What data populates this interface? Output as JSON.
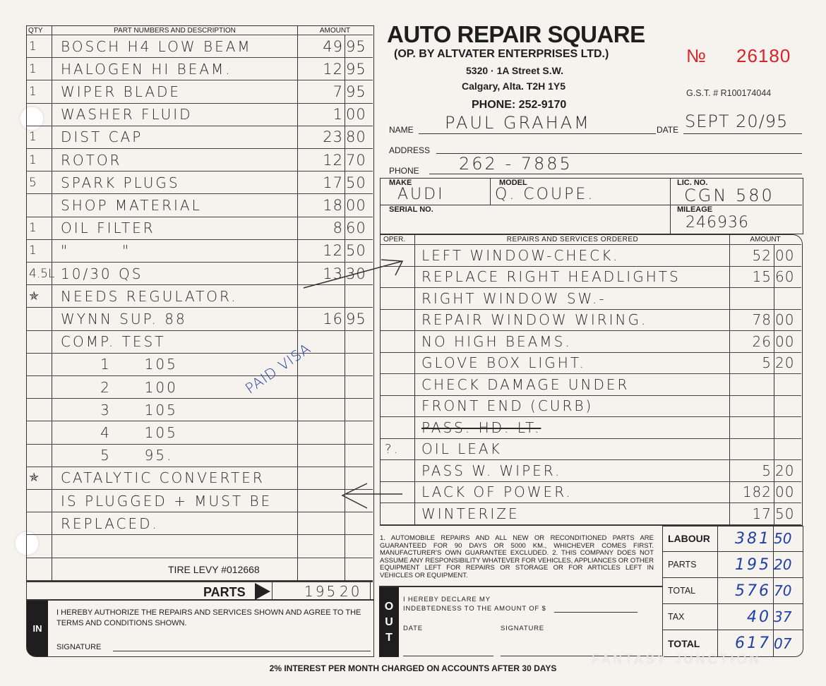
{
  "header": {
    "company": "AUTO REPAIR SQUARE",
    "operator": "(OP. BY ALTVATER ENTERPRISES LTD.)",
    "address1": "5320 · 1A Street S.W.",
    "address2": "Calgary, Alta. T2H 1Y5",
    "phone": "PHONE: 252-9170",
    "number_label": "№",
    "number": "26180",
    "gst": "G.S.T. # R100174044",
    "color_number": "#d8232a"
  },
  "customer": {
    "name_label": "NAME",
    "name": "PAUL GRAHAM",
    "date_label": "DATE",
    "date": "SEPT 20/95",
    "address_label": "ADDRESS",
    "address": "",
    "phone_label": "PHONE",
    "phone": "262 - 7885"
  },
  "vehicle": {
    "make_label": "MAKE",
    "make": "AUDI",
    "model_label": "MODEL",
    "model": "Q. COUPE.",
    "lic_label": "LIC. NO.",
    "lic": "CGN 580",
    "serial_label": "SERIAL NO.",
    "serial": "",
    "mileage_label": "MILEAGE",
    "mileage": "246936"
  },
  "parts": {
    "headers": {
      "qty": "QTY",
      "desc": "PART NUMBERS AND DESCRIPTION",
      "amount": "AMOUNT"
    },
    "rows": [
      {
        "qty": "1",
        "desc": "BOSCH H4 LOW BEAM",
        "dollars": "49",
        "cents": "95"
      },
      {
        "qty": "1",
        "desc": "HALOGEN HI BEAM.",
        "dollars": "12",
        "cents": "95"
      },
      {
        "qty": "1",
        "desc": "WIPER BLADE",
        "dollars": "7",
        "cents": "95"
      },
      {
        "qty": "",
        "desc": "WASHER FLUID",
        "dollars": "1",
        "cents": "00"
      },
      {
        "qty": "1",
        "desc": "DIST CAP",
        "dollars": "23",
        "cents": "80"
      },
      {
        "qty": "1",
        "desc": "ROTOR",
        "dollars": "12",
        "cents": "70"
      },
      {
        "qty": "5",
        "desc": "SPARK PLUGS",
        "dollars": "17",
        "cents": "50"
      },
      {
        "qty": "",
        "desc": "SHOP MATERIAL",
        "dollars": "18",
        "cents": "00"
      },
      {
        "qty": "1",
        "desc": "OIL FILTER",
        "dollars": "8",
        "cents": "60"
      },
      {
        "qty": "1",
        "desc": "\"        \"",
        "dollars": "12",
        "cents": "50"
      },
      {
        "qty": "4.5L",
        "desc": "10/30 QS",
        "dollars": "13",
        "cents": "30"
      },
      {
        "qty": "✯",
        "desc": "NEEDS REGULATOR.",
        "dollars": "",
        "cents": ""
      },
      {
        "qty": "",
        "desc": "WYNN SUP. 88",
        "dollars": "16",
        "cents": "95"
      },
      {
        "qty": "",
        "desc": "COMP. TEST",
        "dollars": "",
        "cents": ""
      },
      {
        "qty": "",
        "desc": "      1     105",
        "dollars": "",
        "cents": ""
      },
      {
        "qty": "",
        "desc": "      2     100",
        "dollars": "",
        "cents": ""
      },
      {
        "qty": "",
        "desc": "      3     105",
        "dollars": "",
        "cents": ""
      },
      {
        "qty": "",
        "desc": "      4     105",
        "dollars": "",
        "cents": ""
      },
      {
        "qty": "",
        "desc": "      5     95.",
        "dollars": "",
        "cents": ""
      },
      {
        "qty": "✯",
        "desc": "CATALYTIC CONVERTER",
        "dollars": "",
        "cents": ""
      },
      {
        "qty": "",
        "desc": "IS PLUGGED + MUST BE",
        "dollars": "",
        "cents": ""
      },
      {
        "qty": "",
        "desc": "REPLACED.",
        "dollars": "",
        "cents": ""
      },
      {
        "qty": "",
        "desc": "",
        "dollars": "",
        "cents": ""
      },
      {
        "qty": "",
        "desc": "",
        "dollars": "",
        "cents": ""
      }
    ],
    "tire_levy": "TIRE LEVY #012668",
    "parts_label": "PARTS",
    "parts_dollars": "195",
    "parts_cents": "20",
    "paid_note": "PAID VISA"
  },
  "repairs": {
    "headers": {
      "oper": "OPER.",
      "desc": "REPAIRS AND SERVICES ORDERED",
      "amount": "AMOUNT"
    },
    "rows": [
      {
        "oper": "",
        "desc": "LEFT WINDOW-CHECK.",
        "dollars": "52",
        "cents": "00"
      },
      {
        "oper": "",
        "desc": "REPLACE RIGHT HEADLIGHTS",
        "dollars": "15",
        "cents": "60"
      },
      {
        "oper": "",
        "desc": "RIGHT WINDOW SW.-",
        "dollars": "",
        "cents": ""
      },
      {
        "oper": "",
        "desc": "REPAIR WINDOW WIRING.",
        "dollars": "78",
        "cents": "00"
      },
      {
        "oper": "",
        "desc": "NO HIGH BEAMS.",
        "dollars": "26",
        "cents": "00"
      },
      {
        "oper": "",
        "desc": "GLOVE BOX LIGHT.",
        "dollars": "5",
        "cents": "20"
      },
      {
        "oper": "",
        "desc": "CHECK DAMAGE UNDER",
        "dollars": "",
        "cents": ""
      },
      {
        "oper": "",
        "desc": "FRONT END (CURB)",
        "dollars": "",
        "cents": ""
      },
      {
        "oper": "",
        "desc": "PASS. HD. LT.",
        "dollars": "",
        "cents": "",
        "struck": true
      },
      {
        "oper": "?.",
        "desc": "OIL LEAK",
        "dollars": "",
        "cents": ""
      },
      {
        "oper": "",
        "desc": "PASS W. WIPER.",
        "dollars": "5",
        "cents": "20"
      },
      {
        "oper": "",
        "desc": "LACK OF POWER.",
        "dollars": "182",
        "cents": "00"
      },
      {
        "oper": "",
        "desc": "WINTERIZE",
        "dollars": "17",
        "cents": "50"
      }
    ]
  },
  "terms": "1. AUTOMOBILE REPAIRS AND ALL NEW OR RECONDITIONED PARTS ARE GUARANTEED FOR 90 DAYS OR 5000 KM., WHICHEVER COMES FIRST. MANUFACTURER'S OWN GUARANTEE EXCLUDED. 2. THIS COMPANY DOES NOT ASSUME ANY RESPONSIBILITY WHATEVER FOR VEHICLES, APPLIANCES OR OTHER EQUIPMENT LEFT FOR REPAIRS OR STORAGE OR FOR ARTICLES LEFT IN VEHICLES OR EQUIPMENT.",
  "totals": [
    {
      "label": "LABOUR",
      "dollars": "381",
      "cents": "50"
    },
    {
      "label": "PARTS",
      "dollars": "195",
      "cents": "20"
    },
    {
      "label": "TOTAL",
      "dollars": "576",
      "cents": "70"
    },
    {
      "label": "TAX",
      "dollars": "40",
      "cents": "37"
    },
    {
      "label": "TOTAL",
      "dollars": "617",
      "cents": "07"
    }
  ],
  "in_box": {
    "tab": "IN",
    "text": "I HEREBY AUTHORIZE THE REPAIRS AND SERVICES SHOWN AND AGREE TO THE TERMS AND CONDITIONS SHOWN.",
    "signature_label": "SIGNATURE"
  },
  "out_box": {
    "tab": "OUT",
    "line1": "I HEREBY DECLARE MY",
    "line2": "INDEBTEDNESS TO THE AMOUNT OF $",
    "date_label": "DATE",
    "signature_label": "SIGNATURE"
  },
  "footer": "2% INTEREST PER MONTH CHARGED ON ACCOUNTS AFTER 30 DAYS",
  "watermark": "FANTASY JUNCTION"
}
